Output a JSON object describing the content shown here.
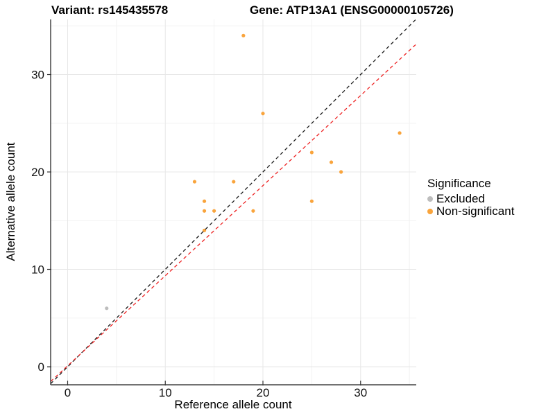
{
  "header": {
    "title_left": "Variant: rs145435578",
    "title_right": "Gene: ATP13A1 (ENSG00000105726)"
  },
  "chart_data": {
    "type": "scatter",
    "xlabel": "Reference allele count",
    "ylabel": "Alternative allele count",
    "xlim": [
      -1.74,
      35.7
    ],
    "ylim": [
      -1.85,
      35.66
    ],
    "x_ticks": [
      0,
      10,
      20,
      30
    ],
    "y_ticks": [
      0,
      10,
      20,
      30
    ],
    "x_minor_ticks": [
      5,
      15,
      25,
      35
    ],
    "y_minor_ticks": [
      5,
      15,
      25,
      35
    ],
    "grid": {
      "major_color": "#e7e7e7",
      "minor_color": "#f2f2f2"
    },
    "axis_color": "#444444",
    "series": [
      {
        "name": "Excluded",
        "color": "#bdbdbd",
        "points": [
          [
            4,
            6
          ]
        ]
      },
      {
        "name": "Non-significant",
        "color": "#f9a43c",
        "points": [
          [
            13,
            19
          ],
          [
            14,
            14
          ],
          [
            14,
            16
          ],
          [
            14,
            17
          ],
          [
            15,
            16
          ],
          [
            17,
            19
          ],
          [
            18,
            34
          ],
          [
            19,
            16
          ],
          [
            20,
            26
          ],
          [
            25,
            17
          ],
          [
            25,
            22
          ],
          [
            27,
            21
          ],
          [
            28,
            20
          ],
          [
            34,
            24
          ]
        ]
      }
    ],
    "lines": [
      {
        "name": "identity",
        "slope": 1,
        "intercept": 0,
        "color": "#1a1a1a",
        "style": "dashed"
      },
      {
        "name": "fit",
        "slope": 0.925,
        "intercept": 0.1,
        "color": "#ee2222",
        "style": "dashed"
      }
    ],
    "legend_position": "right"
  },
  "legend": {
    "title": "Significance",
    "items": [
      {
        "label": "Excluded",
        "color": "#bdbdbd"
      },
      {
        "label": "Non-significant",
        "color": "#f9a43c"
      }
    ]
  }
}
